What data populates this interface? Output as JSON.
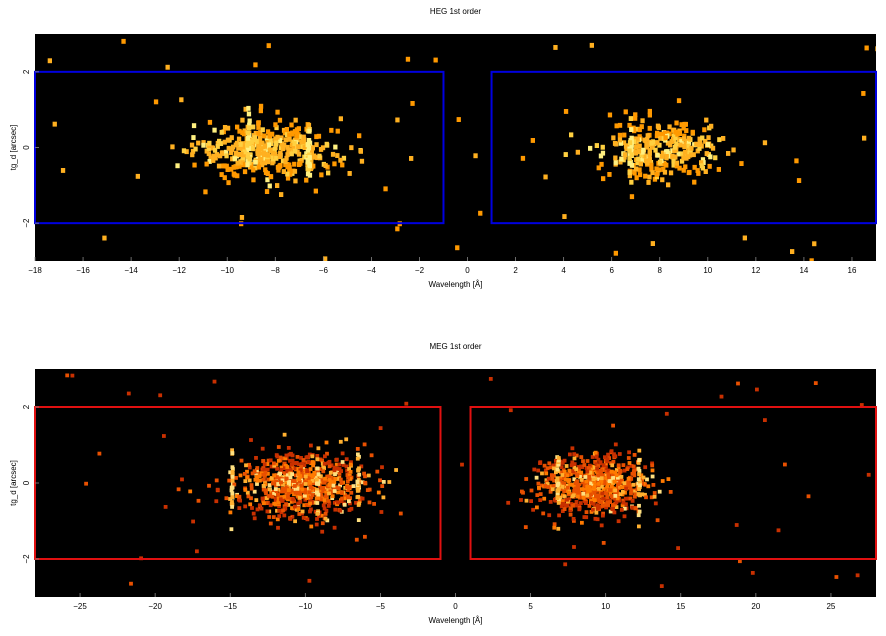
{
  "chart_data": [
    {
      "type": "heatmap",
      "title": "HEG 1st order",
      "xlabel": "Wavelength [Å]",
      "ylabel": "tg_d [arcsec]",
      "xlim": [
        -18,
        17
      ],
      "ylim": [
        -3,
        3
      ],
      "xticks": [
        -18,
        -16,
        -14,
        -12,
        -10,
        -8,
        -6,
        -4,
        -2,
        0,
        2,
        4,
        6,
        8,
        10,
        12,
        14,
        16
      ],
      "yticks": [
        -2,
        0,
        2
      ],
      "background_color": "#000000",
      "region_color": "#0000e0",
      "regions": [
        {
          "x": [
            -18,
            -1
          ],
          "y": [
            -2,
            2
          ]
        },
        {
          "x": [
            1,
            17
          ],
          "y": [
            -2,
            2
          ]
        }
      ],
      "emission_clusters": [
        {
          "x_center": -8.5,
          "x_spread": 2.6,
          "y_spread": 0.55,
          "count": 420
        },
        {
          "x_center": 8.0,
          "x_spread": 2.3,
          "y_spread": 0.55,
          "count": 300
        }
      ],
      "bright_lines": [
        -9.2,
        -6.7,
        6.7
      ],
      "colors": [
        "#ff9900",
        "#ffb020",
        "#ffd040",
        "#fff080"
      ],
      "bin_width": 0.18,
      "bin_height": 0.13
    },
    {
      "type": "heatmap",
      "title": "MEG 1st order",
      "xlabel": "Wavelength [Å]",
      "ylabel": "tg_d [arcsec]",
      "xlim": [
        -28,
        28
      ],
      "ylim": [
        -3,
        3
      ],
      "xticks": [
        -25,
        -20,
        -15,
        -10,
        -5,
        0,
        5,
        10,
        15,
        20,
        25
      ],
      "yticks": [
        -2,
        0,
        2
      ],
      "background_color": "#000000",
      "region_color": "#e01010",
      "regions": [
        {
          "x": [
            -28,
            -1
          ],
          "y": [
            -2,
            2
          ]
        },
        {
          "x": [
            1,
            28
          ],
          "y": [
            -2,
            2
          ]
        }
      ],
      "emission_clusters": [
        {
          "x_center": -10.5,
          "x_spread": 4.0,
          "y_spread": 0.6,
          "count": 700
        },
        {
          "x_center": 9.0,
          "x_spread": 3.3,
          "y_spread": 0.55,
          "count": 650
        }
      ],
      "bright_lines": [
        -15.0,
        -9.3,
        -6.6,
        6.7,
        12.1
      ],
      "colors": [
        "#c83000",
        "#e85000",
        "#ff7a00",
        "#ffb030",
        "#ffe080"
      ],
      "bin_width": 0.25,
      "bin_height": 0.1
    }
  ]
}
